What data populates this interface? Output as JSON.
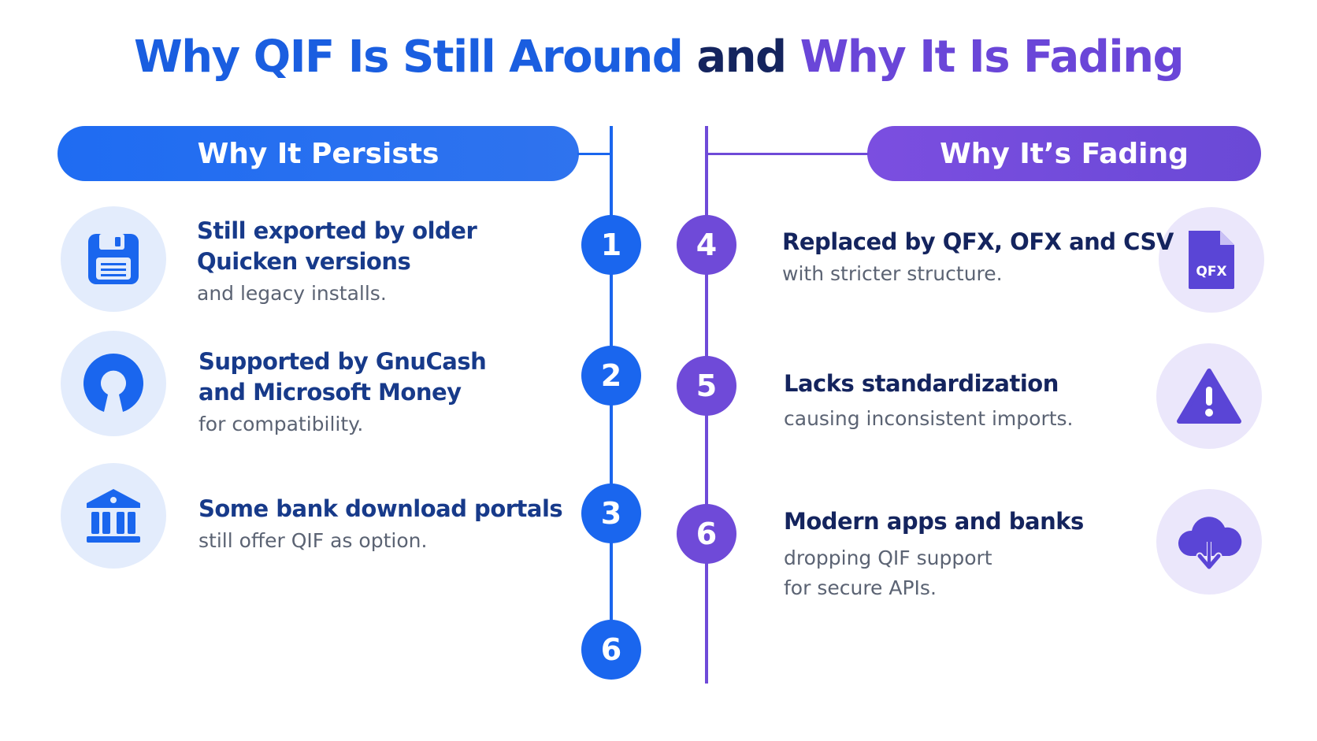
{
  "title": {
    "part1": "Why QIF Is Still Around",
    "part2": " and ",
    "part3": "Why It Is Fading"
  },
  "left": {
    "heading": "Why It Persists",
    "items": [
      {
        "number": "1",
        "icon": "floppy-disk-icon",
        "head1": "Still exported by older",
        "head2": "Quicken versions",
        "sub1": "and legacy installs."
      },
      {
        "number": "2",
        "icon": "open-source-icon",
        "head1": "Supported by GnuCash",
        "head2": "and Microsoft Money",
        "sub1": "for compatibility."
      },
      {
        "number": "3",
        "icon": "bank-icon",
        "head1": "Some bank download portals",
        "sub1": "still offer QIF as option."
      }
    ],
    "extra_number": "6"
  },
  "right": {
    "heading": "Why It’s Fading",
    "items": [
      {
        "number": "4",
        "icon": "qfx-file-icon",
        "icon_text": "QFX",
        "head1": "Replaced by QFX, OFX and CSV",
        "sub1": "with stricter structure."
      },
      {
        "number": "5",
        "icon": "warning-icon",
        "head1": "Lacks standardization",
        "sub1": "causing inconsistent imports."
      },
      {
        "number": "6",
        "icon": "cloud-download-icon",
        "head1": "Modern apps and banks",
        "sub1": "dropping QIF support",
        "sub2": "for secure APIs."
      }
    ]
  },
  "colors": {
    "blue": "#1a66ee",
    "purple": "#6f4ad8",
    "navy": "#14245e"
  }
}
